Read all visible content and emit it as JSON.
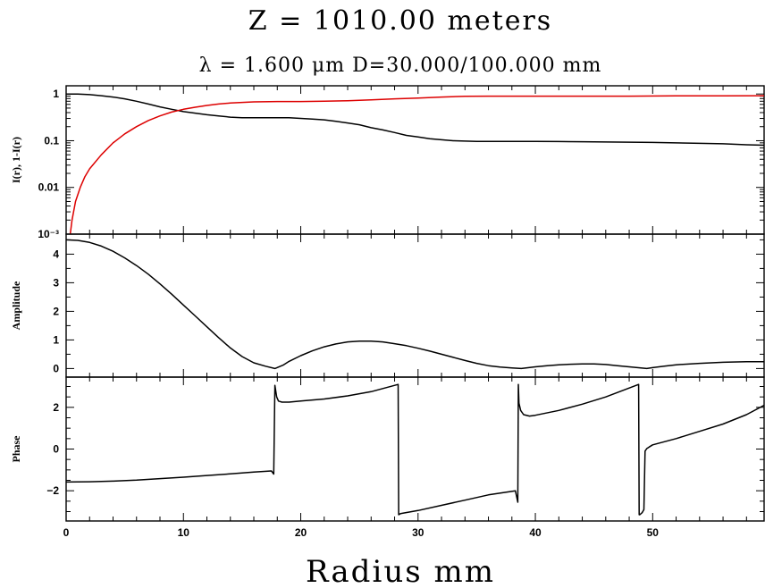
{
  "figure": {
    "title": "Z = 1010.00 meters",
    "subtitle": "λ = 1.600 μm   D=30.000/100.000 mm",
    "xlabel": "Radius mm"
  },
  "chart_data": [
    {
      "type": "line",
      "name": "intensity",
      "ylabel": "I(r), 1-I(r)",
      "yscale": "log",
      "xlim": [
        0,
        59.5
      ],
      "ylim": [
        0.001,
        1.5
      ],
      "yticks": [
        {
          "v": 1,
          "label": "1"
        },
        {
          "v": 0.1,
          "label": "0.1"
        },
        {
          "v": 0.01,
          "label": "0.01"
        },
        {
          "v": 0.001,
          "label": "10⁻³"
        }
      ],
      "series": [
        {
          "color": "#000000",
          "x": [
            0,
            1,
            2,
            3,
            4,
            5,
            6,
            7,
            8,
            9,
            10,
            11,
            12,
            13,
            14,
            15,
            16,
            17,
            18,
            19,
            20,
            21,
            22,
            23,
            24,
            25,
            26,
            27,
            28,
            29,
            30,
            31,
            32,
            33,
            34,
            35,
            36,
            38,
            40,
            42,
            44,
            46,
            48,
            50,
            52,
            54,
            56,
            58,
            59.5
          ],
          "y": [
            1.0,
            1.0,
            0.97,
            0.92,
            0.86,
            0.79,
            0.7,
            0.61,
            0.53,
            0.47,
            0.42,
            0.39,
            0.36,
            0.34,
            0.32,
            0.31,
            0.31,
            0.31,
            0.31,
            0.31,
            0.3,
            0.29,
            0.28,
            0.26,
            0.24,
            0.22,
            0.19,
            0.17,
            0.15,
            0.13,
            0.12,
            0.11,
            0.105,
            0.1,
            0.098,
            0.097,
            0.097,
            0.097,
            0.097,
            0.096,
            0.095,
            0.094,
            0.093,
            0.092,
            0.09,
            0.088,
            0.086,
            0.082,
            0.08
          ]
        },
        {
          "color": "#dd0000",
          "x": [
            0.35,
            0.5,
            0.8,
            1.2,
            1.6,
            2,
            3,
            4,
            5,
            6,
            7,
            8,
            9,
            10,
            11,
            12,
            13,
            14,
            15,
            16,
            18,
            20,
            22,
            24,
            26,
            28,
            30,
            32,
            34,
            36,
            38,
            40,
            44,
            48,
            52,
            56,
            59.5
          ],
          "y": [
            0.001,
            0.002,
            0.005,
            0.01,
            0.017,
            0.025,
            0.05,
            0.09,
            0.14,
            0.2,
            0.27,
            0.34,
            0.41,
            0.47,
            0.52,
            0.57,
            0.61,
            0.64,
            0.66,
            0.68,
            0.69,
            0.69,
            0.7,
            0.72,
            0.75,
            0.79,
            0.82,
            0.86,
            0.89,
            0.9,
            0.9,
            0.9,
            0.9,
            0.9,
            0.91,
            0.91,
            0.92
          ]
        }
      ]
    },
    {
      "type": "line",
      "name": "amplitude",
      "ylabel": "Amplitude",
      "yscale": "linear",
      "xlim": [
        0,
        59.5
      ],
      "ylim": [
        -0.3,
        4.7
      ],
      "yticks": [
        {
          "v": 0,
          "label": "0"
        },
        {
          "v": 1,
          "label": "1"
        },
        {
          "v": 2,
          "label": "2"
        },
        {
          "v": 3,
          "label": "3"
        },
        {
          "v": 4,
          "label": "4"
        }
      ],
      "series": [
        {
          "color": "#000000",
          "x": [
            0,
            1,
            2,
            3,
            4,
            5,
            6,
            7,
            8,
            9,
            10,
            11,
            12,
            13,
            14,
            15,
            16,
            17,
            17.8,
            18.5,
            19,
            20,
            21,
            22,
            23,
            24,
            25,
            26,
            27,
            28,
            29,
            30,
            31,
            32,
            33,
            34,
            35,
            36,
            37,
            38,
            38.8,
            40,
            41,
            42,
            43,
            44,
            45,
            46,
            47,
            48,
            49,
            49.5,
            50,
            51,
            52,
            54,
            56,
            58,
            59.5
          ],
          "y": [
            4.5,
            4.48,
            4.41,
            4.28,
            4.1,
            3.87,
            3.6,
            3.3,
            2.96,
            2.6,
            2.22,
            1.84,
            1.46,
            1.08,
            0.72,
            0.42,
            0.2,
            0.08,
            0.0,
            0.12,
            0.25,
            0.45,
            0.62,
            0.76,
            0.86,
            0.93,
            0.96,
            0.96,
            0.93,
            0.87,
            0.8,
            0.71,
            0.61,
            0.5,
            0.39,
            0.28,
            0.18,
            0.1,
            0.05,
            0.02,
            0.0,
            0.06,
            0.1,
            0.13,
            0.15,
            0.16,
            0.16,
            0.14,
            0.1,
            0.06,
            0.02,
            0.0,
            0.03,
            0.08,
            0.13,
            0.18,
            0.22,
            0.24,
            0.24
          ]
        }
      ]
    },
    {
      "type": "line",
      "name": "phase",
      "ylabel": "Phase",
      "yscale": "linear",
      "xlim": [
        0,
        59.5
      ],
      "ylim": [
        -3.45,
        3.45
      ],
      "yticks": [
        {
          "v": -2,
          "label": "−2"
        },
        {
          "v": 0,
          "label": "0"
        },
        {
          "v": 2,
          "label": "2"
        }
      ],
      "series": [
        {
          "color": "#000000",
          "x": [
            0,
            2,
            4,
            6,
            8,
            10,
            12,
            14,
            16,
            17.5,
            17.7,
            17.8,
            17.95,
            18.1,
            18.4,
            19,
            20,
            22,
            24,
            26,
            28.3,
            28.35,
            28.5,
            30,
            32,
            34,
            36,
            38.3,
            38.5,
            38.55,
            38.6,
            38.75,
            39.0,
            39.5,
            40,
            42,
            44,
            46,
            48.8,
            48.85,
            48.9,
            49.1,
            49.25,
            49.35,
            49.5,
            49.7,
            50,
            52,
            54,
            56,
            58,
            59.5
          ],
          "y": [
            -1.58,
            -1.57,
            -1.54,
            -1.49,
            -1.42,
            -1.35,
            -1.27,
            -1.19,
            -1.1,
            -1.05,
            -1.2,
            3.05,
            2.5,
            2.3,
            2.25,
            2.25,
            2.3,
            2.4,
            2.55,
            2.75,
            3.1,
            -3.15,
            -3.1,
            -2.95,
            -2.7,
            -2.45,
            -2.2,
            -2.0,
            -2.55,
            3.1,
            2.2,
            1.85,
            1.65,
            1.58,
            1.62,
            1.85,
            2.15,
            2.5,
            3.1,
            -3.15,
            -3.15,
            -3.05,
            -2.9,
            -0.1,
            0.02,
            0.1,
            0.2,
            0.5,
            0.85,
            1.2,
            1.65,
            2.1
          ]
        }
      ]
    }
  ],
  "xaxis": {
    "xlim": [
      0,
      59.5
    ],
    "ticks": [
      {
        "v": 0,
        "label": "0"
      },
      {
        "v": 10,
        "label": "10"
      },
      {
        "v": 20,
        "label": "20"
      },
      {
        "v": 30,
        "label": "30"
      },
      {
        "v": 40,
        "label": "40"
      },
      {
        "v": 50,
        "label": "50"
      }
    ]
  }
}
